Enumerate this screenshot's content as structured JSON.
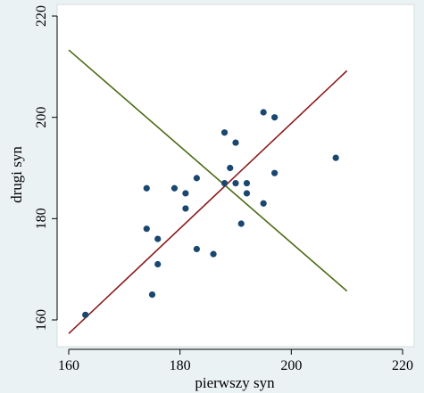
{
  "chart_data": {
    "type": "scatter",
    "title": "",
    "xlabel": "pierwszy syn",
    "ylabel": "drugi syn",
    "xlim": [
      160,
      220
    ],
    "ylim": [
      160,
      220
    ],
    "xticks": [
      160,
      180,
      200,
      220
    ],
    "yticks": [
      160,
      180,
      200,
      220
    ],
    "grid": false,
    "colors": {
      "background": "#eaf2f3",
      "plot_background": "#ffffff",
      "points": "#1a476f",
      "fit_line": "#8b1a1a",
      "reverse_line": "#4b6b14"
    },
    "points": [
      {
        "x": 163,
        "y": 161
      },
      {
        "x": 174,
        "y": 186
      },
      {
        "x": 174,
        "y": 178
      },
      {
        "x": 175,
        "y": 165
      },
      {
        "x": 176,
        "y": 176
      },
      {
        "x": 176,
        "y": 171
      },
      {
        "x": 179,
        "y": 186
      },
      {
        "x": 181,
        "y": 185
      },
      {
        "x": 181,
        "y": 182
      },
      {
        "x": 183,
        "y": 188
      },
      {
        "x": 183,
        "y": 174
      },
      {
        "x": 186,
        "y": 173
      },
      {
        "x": 188,
        "y": 197
      },
      {
        "x": 188,
        "y": 187
      },
      {
        "x": 189,
        "y": 190
      },
      {
        "x": 190,
        "y": 195
      },
      {
        "x": 190,
        "y": 187
      },
      {
        "x": 191,
        "y": 179
      },
      {
        "x": 192,
        "y": 187
      },
      {
        "x": 192,
        "y": 185
      },
      {
        "x": 195,
        "y": 201
      },
      {
        "x": 195,
        "y": 183
      },
      {
        "x": 197,
        "y": 200
      },
      {
        "x": 197,
        "y": 189
      },
      {
        "x": 208,
        "y": 192
      }
    ],
    "lines": [
      {
        "points": [
          [
            160,
            157.3
          ],
          [
            210,
            209.2
          ]
        ]
      },
      {
        "points": [
          [
            160,
            213.3
          ],
          [
            210,
            165.7
          ]
        ]
      }
    ]
  }
}
